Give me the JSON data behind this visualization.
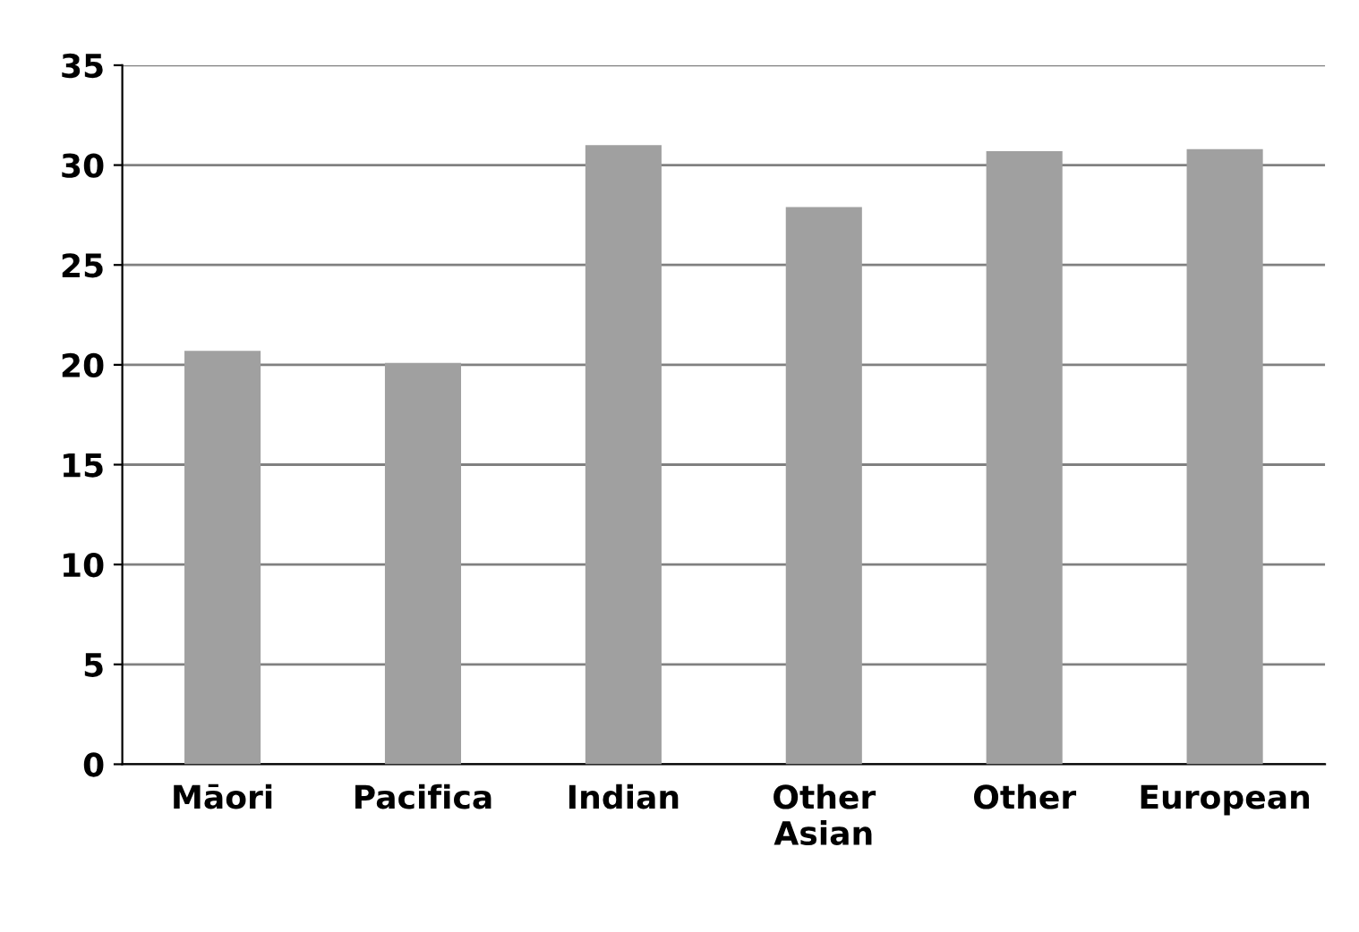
{
  "chart_data": {
    "type": "bar",
    "categories": [
      "Māori",
      "Pacifica",
      "Indian",
      "Other\nAsian",
      "Other",
      "European"
    ],
    "values": [
      20.7,
      20.1,
      31.0,
      27.9,
      30.7,
      30.8
    ],
    "color": "#a0a0a0",
    "ylim": [
      0,
      35
    ],
    "yticks": [
      0,
      5,
      10,
      15,
      20,
      25,
      30,
      35
    ],
    "grid": "y"
  }
}
